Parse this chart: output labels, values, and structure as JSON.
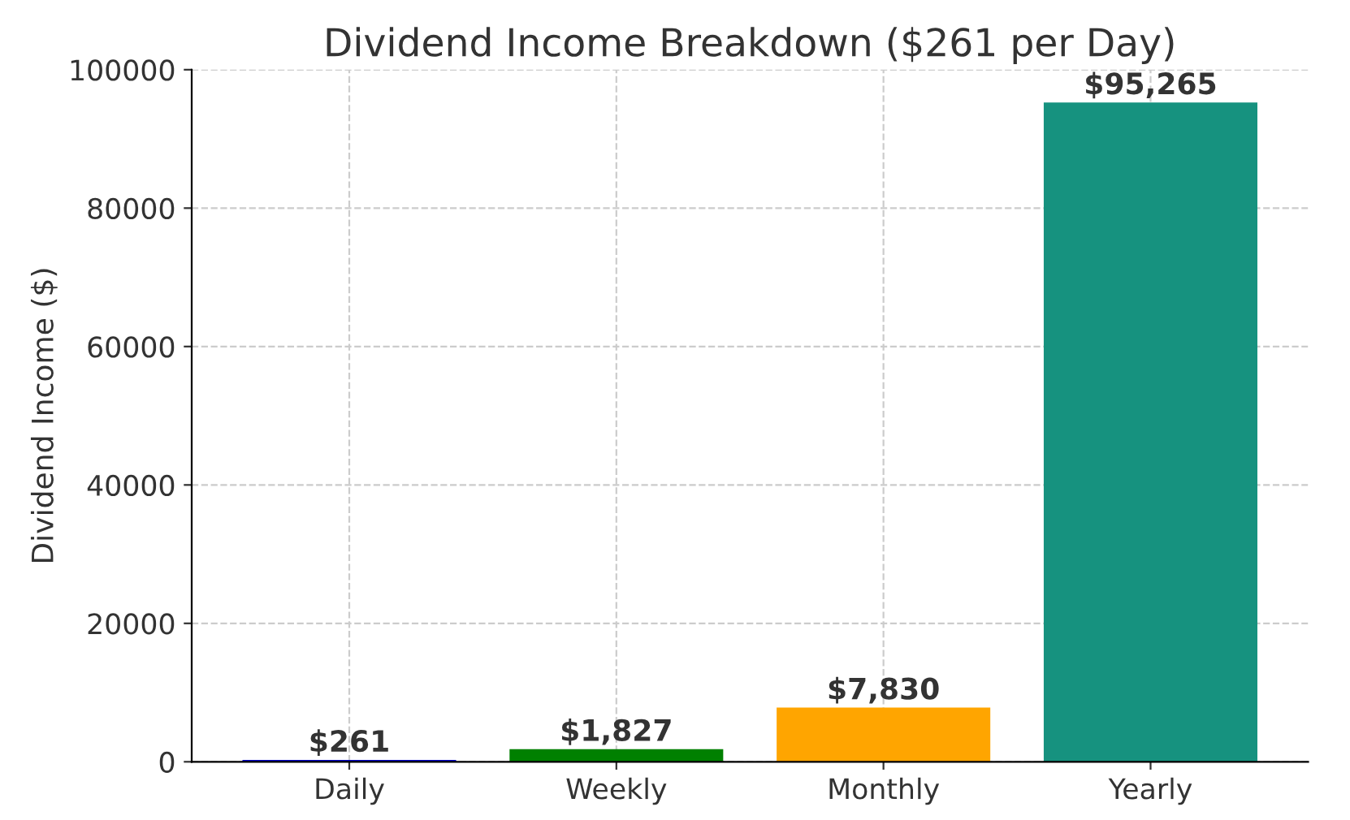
{
  "chart_data": {
    "type": "bar",
    "title": "Dividend Income Breakdown ($261 per Day)",
    "ylabel": "Dividend Income ($)",
    "categories": [
      "Daily",
      "Weekly",
      "Monthly",
      "Yearly"
    ],
    "values": [
      261,
      1827,
      7830,
      95265
    ],
    "colors": [
      "#0000cc",
      "#008000",
      "#ffa500",
      "#16927f"
    ],
    "value_labels": [
      "$261",
      "$1,827",
      "$7,830",
      "$95,265"
    ],
    "ylim": [
      0,
      100000
    ],
    "yticks": [
      0,
      20000,
      40000,
      60000,
      80000,
      100000
    ],
    "grid": true
  }
}
